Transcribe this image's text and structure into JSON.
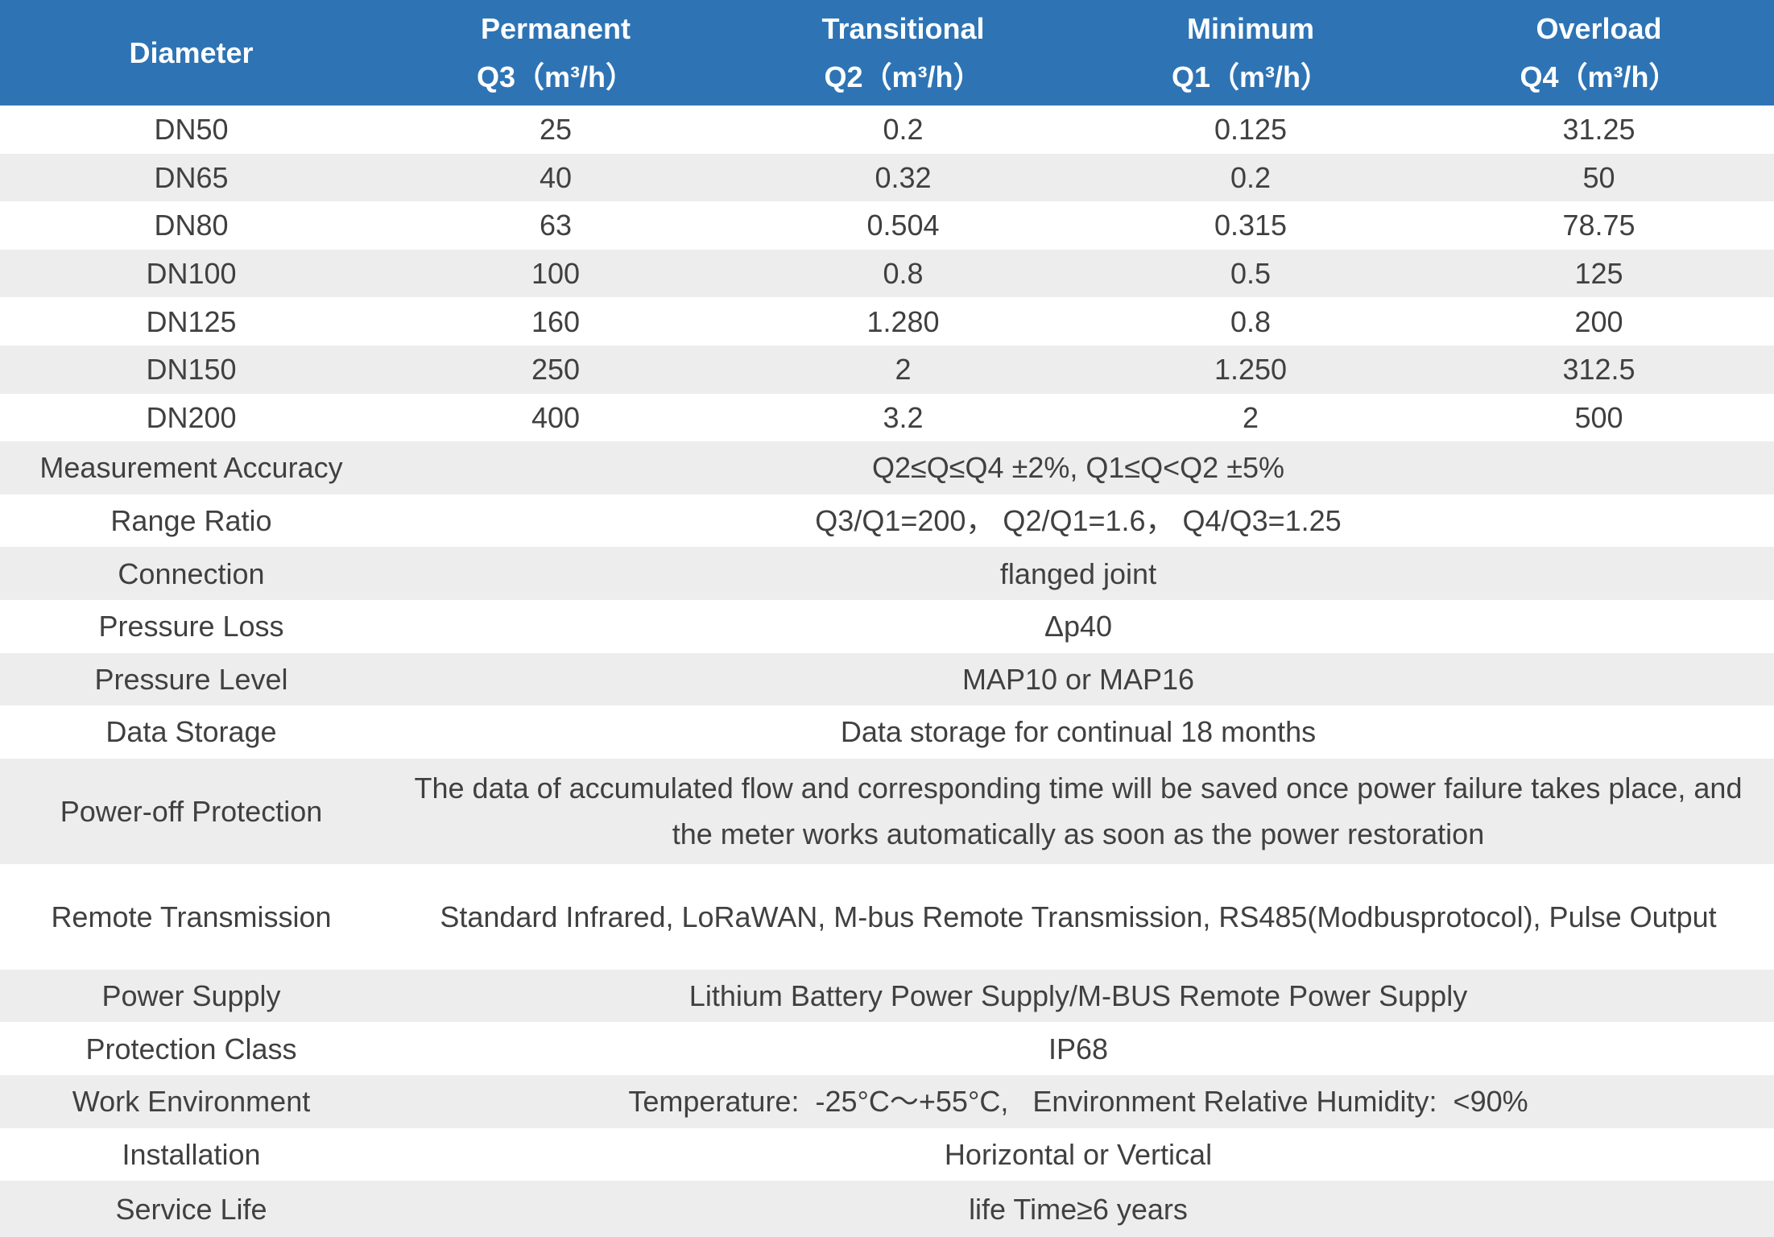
{
  "header": {
    "diameter": "Diameter",
    "permanent": "Permanent",
    "permanent_unit": "Q3（m³/h）",
    "transitional": "Transitional",
    "transitional_unit": "Q2（m³/h）",
    "minimum": "Minimum",
    "minimum_unit": "Q1（m³/h）",
    "overload": "Overload",
    "overload_unit": "Q4（m³/h）"
  },
  "rows": [
    [
      "DN50",
      "25",
      "0.2",
      "0.125",
      "31.25"
    ],
    [
      "DN65",
      "40",
      "0.32",
      "0.2",
      "50"
    ],
    [
      "DN80",
      "63",
      "0.504",
      "0.315",
      "78.75"
    ],
    [
      "DN100",
      "100",
      "0.8",
      "0.5",
      "125"
    ],
    [
      "DN125",
      "160",
      "1.280",
      "0.8",
      "200"
    ],
    [
      "DN150",
      "250",
      "2",
      "1.250",
      "312.5"
    ],
    [
      "DN200",
      "400",
      "3.2",
      "2",
      "500"
    ]
  ],
  "specs": [
    {
      "label": "Measurement Accuracy",
      "value": "Q2≤Q≤Q4  ±2%,   Q1≤Q<Q2  ±5%"
    },
    {
      "label": "Range Ratio",
      "value": "Q3/Q1=200，  Q2/Q1=1.6，  Q4/Q3=1.25"
    },
    {
      "label": "Connection",
      "value": "flanged joint"
    },
    {
      "label": "Pressure Loss",
      "value": "Δp40"
    },
    {
      "label": "Pressure Level",
      "value": "MAP10 or MAP16"
    },
    {
      "label": "Data Storage",
      "value": "Data storage for continual 18 months"
    },
    {
      "label": "Power-off Protection",
      "value": "The data of accumulated flow and corresponding time will be saved once power failure takes place, and the meter works automatically as soon as the power restoration"
    },
    {
      "label": "Remote Transmission",
      "value": "Standard Infrared, LoRaWAN, M-bus Remote Transmission, RS485(Modbusprotocol), Pulse Output"
    },
    {
      "label": "Power Supply",
      "value": "Lithium Battery Power Supply/M-BUS Remote Power Supply"
    },
    {
      "label": "Protection Class",
      "value": "IP68"
    },
    {
      "label": "Work Environment",
      "value": "Temperature:  -25°C～+55°C,   Environment Relative Humidity:  <90%"
    },
    {
      "label": "Installation",
      "value": "Horizontal or Vertical"
    },
    {
      "label": "Service Life",
      "value": "life Time≥6 years"
    }
  ],
  "colors": {
    "header_bg": "#2e74b5",
    "header_text": "#ffffff",
    "stripe": "#ededed",
    "text": "#404040"
  }
}
